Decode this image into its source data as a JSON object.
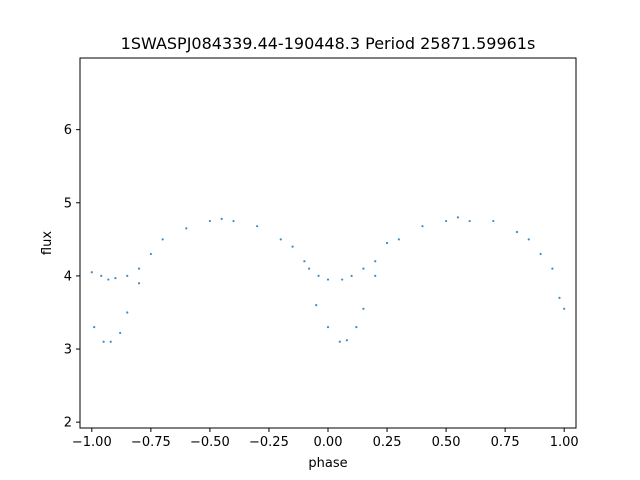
{
  "chart_data": {
    "type": "scatter",
    "title": "1SWASPJ084339.44-190448.3 Period 25871.59961s",
    "xlabel": "phase",
    "ylabel": "flux",
    "xlim": [
      -1.05,
      1.05
    ],
    "ylim": [
      1.92,
      6.98
    ],
    "x_ticks": [
      -1.0,
      -0.75,
      -0.5,
      -0.25,
      0.0,
      0.25,
      0.5,
      0.75,
      1.0
    ],
    "x_tick_labels": [
      "−1.00",
      "−0.75",
      "−0.50",
      "−0.25",
      "0.00",
      "0.25",
      "0.50",
      "0.75",
      "1.00"
    ],
    "y_ticks": [
      2,
      3,
      4,
      5,
      6
    ],
    "y_tick_labels": [
      "2",
      "3",
      "4",
      "5",
      "6"
    ],
    "grid": false,
    "point_color": "#1f77b4",
    "series": [
      {
        "points": [
          [
            -1.0,
            4.05
          ],
          [
            -0.99,
            3.3
          ],
          [
            -0.96,
            4.0
          ],
          [
            -0.95,
            3.1
          ],
          [
            -0.93,
            3.95
          ],
          [
            -0.92,
            3.1
          ],
          [
            -0.9,
            3.97
          ],
          [
            -0.88,
            3.22
          ],
          [
            -0.85,
            4.0
          ],
          [
            -0.85,
            3.5
          ],
          [
            -0.8,
            4.1
          ],
          [
            -0.8,
            3.9
          ],
          [
            -0.75,
            4.3
          ],
          [
            -0.7,
            4.5
          ],
          [
            -0.6,
            4.65
          ],
          [
            -0.5,
            4.75
          ],
          [
            -0.45,
            4.78
          ],
          [
            -0.4,
            4.75
          ],
          [
            -0.3,
            4.68
          ],
          [
            -0.2,
            4.5
          ],
          [
            -0.15,
            4.4
          ],
          [
            -0.1,
            4.2
          ],
          [
            -0.08,
            4.1
          ],
          [
            -0.05,
            3.6
          ],
          [
            -0.04,
            4.0
          ],
          [
            0.0,
            3.95
          ],
          [
            0.0,
            3.3
          ],
          [
            0.05,
            3.1
          ],
          [
            0.06,
            3.95
          ],
          [
            0.08,
            3.12
          ],
          [
            0.1,
            4.0
          ],
          [
            0.12,
            3.3
          ],
          [
            0.15,
            4.1
          ],
          [
            0.15,
            3.55
          ],
          [
            0.2,
            4.2
          ],
          [
            0.2,
            4.0
          ],
          [
            0.25,
            4.45
          ],
          [
            0.3,
            4.5
          ],
          [
            0.4,
            4.68
          ],
          [
            0.5,
            4.75
          ],
          [
            0.55,
            4.8
          ],
          [
            0.6,
            4.75
          ],
          [
            0.7,
            4.75
          ],
          [
            0.8,
            4.6
          ],
          [
            0.85,
            4.5
          ],
          [
            0.9,
            4.3
          ],
          [
            0.95,
            4.1
          ],
          [
            0.98,
            3.7
          ],
          [
            1.0,
            3.55
          ]
        ]
      }
    ]
  }
}
